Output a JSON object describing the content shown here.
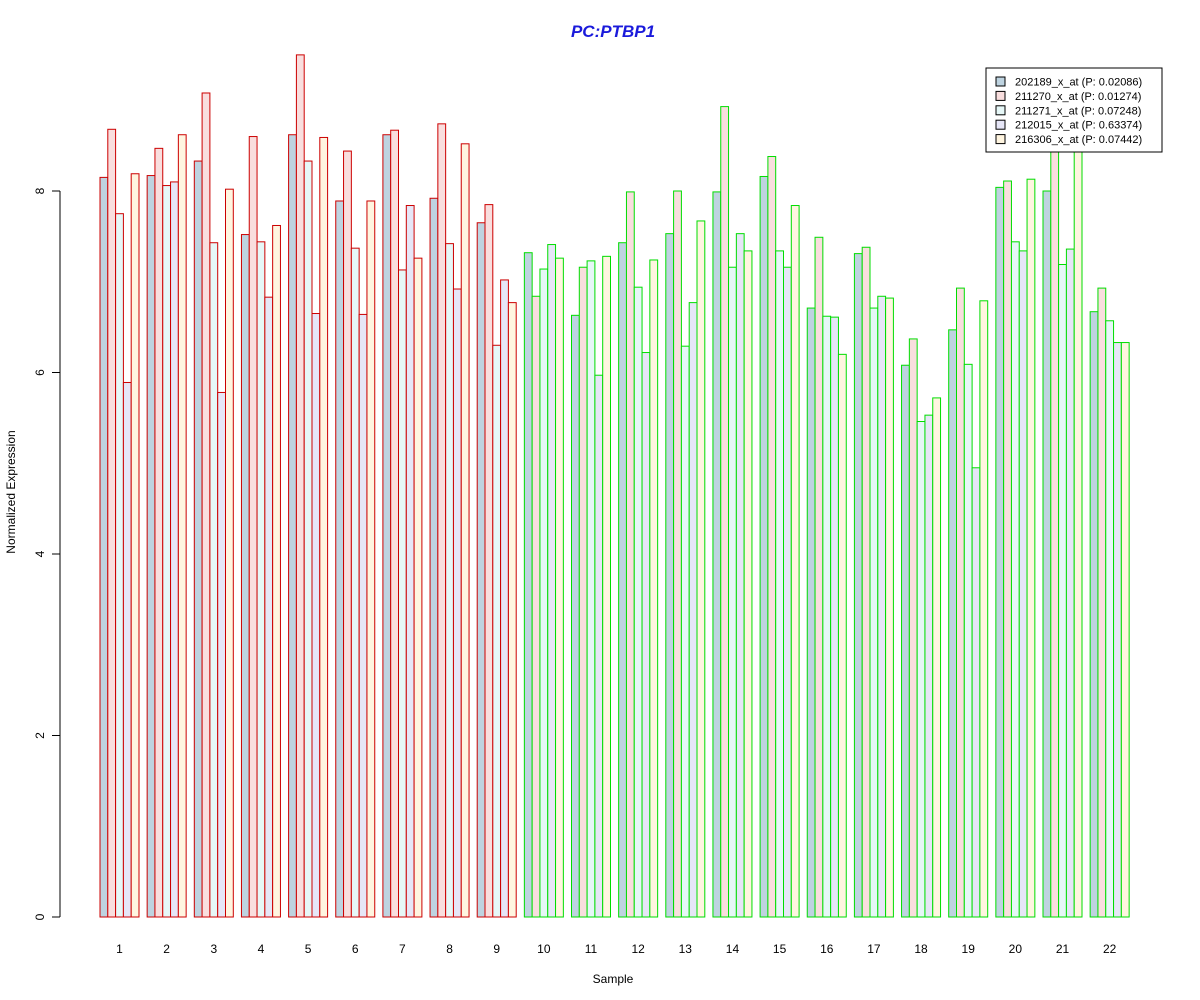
{
  "chart_data": {
    "type": "bar",
    "title": "PC:PTBP1",
    "xlabel": "Sample",
    "ylabel": "Normalized Expression",
    "ylim": [
      0,
      9.5
    ],
    "yticks": [
      0,
      2,
      4,
      6,
      8
    ],
    "grid": false,
    "legend_position": "top-right",
    "categories": [
      "1",
      "2",
      "3",
      "4",
      "5",
      "6",
      "7",
      "8",
      "9",
      "10",
      "11",
      "12",
      "13",
      "14",
      "15",
      "16",
      "17",
      "18",
      "19",
      "20",
      "21",
      "22"
    ],
    "group_border_colors": [
      "#cc0000",
      "#cc0000",
      "#cc0000",
      "#cc0000",
      "#cc0000",
      "#cc0000",
      "#cc0000",
      "#cc0000",
      "#cc0000",
      "#00dd00",
      "#00dd00",
      "#00dd00",
      "#00dd00",
      "#00dd00",
      "#00dd00",
      "#00dd00",
      "#00dd00",
      "#00dd00",
      "#00dd00",
      "#00dd00",
      "#00dd00",
      "#00dd00"
    ],
    "series": [
      {
        "name": "202189_x_at (P: 0.02086)",
        "color": "#bed3e0",
        "values": [
          8.15,
          8.17,
          8.33,
          7.52,
          8.62,
          7.89,
          8.62,
          7.92,
          7.65,
          7.32,
          6.63,
          7.43,
          7.53,
          7.99,
          8.16,
          6.71,
          7.31,
          6.08,
          6.47,
          8.04,
          8.0,
          6.67
        ]
      },
      {
        "name": "211270_x_at (P: 0.01274)",
        "color": "#f9dede",
        "values": [
          8.68,
          8.47,
          9.08,
          8.6,
          9.5,
          8.44,
          8.67,
          8.74,
          7.85,
          6.84,
          7.16,
          7.99,
          8.0,
          8.93,
          8.38,
          7.49,
          7.38,
          6.37,
          6.93,
          8.11,
          8.5,
          6.93
        ]
      },
      {
        "name": "211271_x_at (P: 0.07248)",
        "color": "#e6f7f7",
        "values": [
          7.75,
          8.06,
          7.43,
          7.44,
          8.33,
          7.37,
          7.13,
          7.42,
          6.3,
          7.14,
          7.23,
          6.94,
          6.29,
          7.16,
          7.34,
          6.62,
          6.71,
          5.46,
          6.09,
          7.44,
          7.19,
          6.57
        ]
      },
      {
        "name": "212015_x_at (P: 0.63374)",
        "color": "#e6e6f7",
        "values": [
          5.89,
          8.1,
          5.78,
          6.83,
          6.65,
          6.64,
          7.84,
          6.92,
          7.02,
          7.41,
          5.97,
          6.22,
          6.77,
          7.53,
          7.16,
          6.61,
          6.84,
          5.53,
          4.95,
          7.34,
          7.36,
          6.33
        ]
      },
      {
        "name": "216306_x_at (P: 0.07442)",
        "color": "#fff5e0",
        "values": [
          8.19,
          8.62,
          8.02,
          7.62,
          8.59,
          7.89,
          7.26,
          8.52,
          6.77,
          7.26,
          7.28,
          7.24,
          7.67,
          7.34,
          7.84,
          6.2,
          6.82,
          5.72,
          6.79,
          8.13,
          8.5,
          6.33
        ]
      }
    ]
  }
}
